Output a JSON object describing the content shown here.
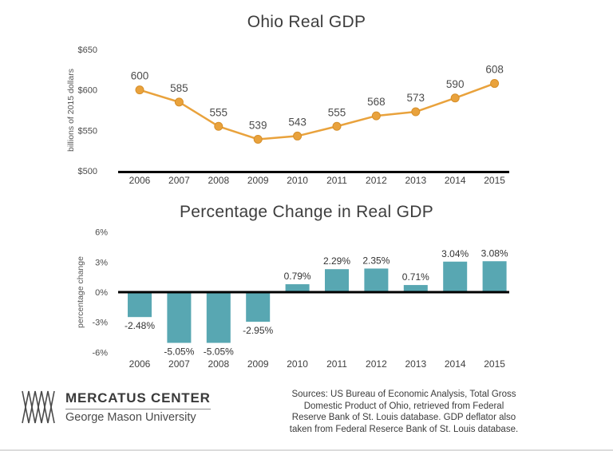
{
  "page_title": "Ohio Real GDP infographic",
  "chart_data": [
    {
      "type": "line",
      "title": "Ohio Real GDP",
      "xlabel": "",
      "ylabel": "billions of 2015 dollars",
      "categories": [
        "2006",
        "2007",
        "2008",
        "2009",
        "2010",
        "2011",
        "2012",
        "2013",
        "2014",
        "2015"
      ],
      "values": [
        600,
        585,
        555,
        539,
        543,
        555,
        568,
        573,
        590,
        608
      ],
      "point_labels": [
        "600",
        "585",
        "555",
        "539",
        "543",
        "555",
        "568",
        "573",
        "590",
        "608"
      ],
      "ylim": [
        500,
        650
      ],
      "yticks": [
        {
          "value": 650,
          "label": "$650"
        },
        {
          "value": 600,
          "label": "$600"
        },
        {
          "value": 550,
          "label": "$550"
        },
        {
          "value": 500,
          "label": "$500"
        }
      ],
      "grid": false,
      "legend": false,
      "line_color": "#E9A23C",
      "marker_color": "#E9A23C",
      "marker_stroke": "#D68F2A"
    },
    {
      "type": "bar",
      "title": "Percentage Change in Real GDP",
      "xlabel": "",
      "ylabel": "percentage change",
      "categories": [
        "2006",
        "2007",
        "2008",
        "2009",
        "2010",
        "2011",
        "2012",
        "2013",
        "2014",
        "2015"
      ],
      "values": [
        -2.48,
        -5.05,
        -5.05,
        -2.95,
        0.79,
        2.29,
        2.35,
        0.71,
        3.04,
        3.08
      ],
      "bar_labels": [
        "-2.48%",
        "-5.05%",
        "-5.05%",
        "-2.95%",
        "0.79%",
        "2.29%",
        "2.35%",
        "0.71%",
        "3.04%",
        "3.08%"
      ],
      "ylim": [
        -6,
        6
      ],
      "yticks": [
        {
          "value": 6,
          "label": "6%"
        },
        {
          "value": 3,
          "label": "3%"
        },
        {
          "value": 0,
          "label": "0%"
        },
        {
          "value": -3,
          "label": "-3%"
        },
        {
          "value": -6,
          "label": "-6%"
        }
      ],
      "grid": false,
      "legend": false,
      "bar_color": "#58A7B2"
    }
  ],
  "footer": {
    "logo_name": "MERCATUS CENTER",
    "logo_subtitle": "George Mason University",
    "sources_lines": [
      "Sources: US Bureau of Economic Analysis, Total Gross",
      "Domestic Product of Ohio, retrieved from Federal",
      "Reserve Bank of St. Louis database. GDP deflator also",
      "taken from Federal Reserce Bank of St. Louis database."
    ]
  },
  "colors": {
    "background": "#ffffff",
    "line": "#E9A23C",
    "bar": "#58A7B2",
    "axis": "#000000",
    "text_dark": "#3d3d3d",
    "text_gray": "#4c4c4c"
  }
}
